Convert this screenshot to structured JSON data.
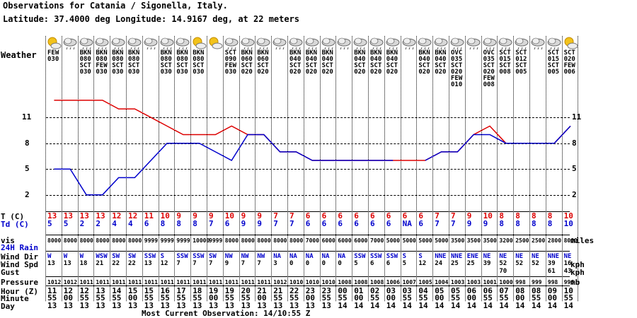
{
  "header": {
    "title": "Observations for Catania / Sigonella, Italy.",
    "location": "Latitude:  37.4000 deg Longitude:   14.9167 deg, at 22 meters"
  },
  "row_labels": {
    "weather": "Weather",
    "t": "T (C)",
    "td": "Td (C)",
    "vis": "vis",
    "rain": "24H Rain",
    "wind_dir": "Wind Dir",
    "wind_spd": "Wind Spd",
    "gust": "Gust",
    "pressure": "Pressure",
    "hour": "Hour (Z)",
    "minute": "Minute",
    "day": "Day"
  },
  "units": {
    "vis": "miles",
    "wind_spd": "kph",
    "gust": "kph",
    "pressure": "mb"
  },
  "footer": "Most Current Observation:  14/10:55 Z",
  "icons": [
    "sun-cloud",
    "cloud",
    "cloud",
    "cloud",
    "cloud",
    "cloud",
    "cloud",
    "cloud",
    "cloud",
    "sun-cloud",
    "sun-cloud",
    "cloud",
    "cloud",
    "cloud",
    "cloud",
    "cloud",
    "cloud",
    "cloud",
    "cloud",
    "cloud",
    "cloud",
    "cloud",
    "cloud",
    "cloud",
    "cloud",
    "cloud",
    "cloud",
    "cloud",
    "cloud",
    "cloud",
    "cloud",
    "cloud",
    "sun-cloud"
  ],
  "sky": [
    "FEW\n030",
    "",
    "BKN\n080\nSCT\n030",
    "BKN\n080\nFEW\n030",
    "BKN\n080\nSCT\n030",
    "BKN\n080\nSCT\n030",
    "",
    "BKN\n080\nSCT\n030",
    "BKN\n080\nSCT\n030",
    "BKN\n080\nSCT\n030",
    "",
    "SCT\n090\nFEW\n030",
    "BKN\n060\nSCT\n020",
    "BKN\n060\nSCT\n020",
    "",
    "BKN\n040\nSCT\n020",
    "BKN\n040\nSCT\n020",
    "BKN\n040\nSCT\n020",
    "",
    "BKN\n040\nSCT\n020",
    "BKN\n040\nSCT\n020",
    "BKN\n040\nSCT\n020",
    "",
    "BKN\n040\nSCT\n020",
    "BKN\n040\nSCT\n020",
    "OVC\n035\nSCT\n020\nFEW\n010",
    "",
    "OVC\n035\nSCT\n020\nFEW\n008",
    "SCT\n015\nSCT\n008",
    "SCT\n012\nSCT\n005",
    "",
    "SCT\n015\nSCT\n005",
    "SCT\n020\nFEW\n006"
  ],
  "chart_data": {
    "type": "line",
    "x": [
      "13 11:55",
      "13 12:00",
      "13 12:55",
      "13 13:55",
      "13 14:55",
      "13 15:00",
      "13 15:55",
      "13 16:55",
      "13 17:55",
      "13 18:55",
      "13 19:00",
      "13 19:55",
      "13 20:55",
      "13 21:00",
      "13 21:55",
      "13 22:55",
      "13 23:00",
      "13 23:55",
      "14 00:55",
      "14 01:00",
      "14 02:55",
      "14 03:00",
      "14 03:55",
      "14 04:55",
      "14 05:00",
      "14 05:55",
      "14 06:00",
      "14 06:55",
      "14 07:55",
      "14 08:00",
      "14 08:55",
      "14 09:00",
      "14 10:55"
    ],
    "series": [
      {
        "name": "T (C)",
        "color": "#dd0000",
        "values": [
          13,
          13,
          13,
          13,
          12,
          12,
          11,
          10,
          9,
          9,
          9,
          10,
          9,
          9,
          7,
          7,
          6,
          6,
          6,
          6,
          6,
          6,
          6,
          6,
          7,
          7,
          9,
          10,
          8,
          8,
          8,
          8,
          10
        ]
      },
      {
        "name": "Td (C)",
        "color": "#0000cc",
        "values": [
          5,
          5,
          2,
          2,
          4,
          4,
          6,
          8,
          8,
          8,
          7,
          6,
          9,
          9,
          7,
          7,
          6,
          6,
          6,
          6,
          6,
          6,
          null,
          6,
          7,
          7,
          9,
          9,
          8,
          8,
          8,
          8,
          10
        ]
      }
    ],
    "ylim": [
      0,
      14.8
    ],
    "yticks": [
      2,
      5,
      8,
      11
    ],
    "grid": "horizontal dashed at ticks, vertical dotted per observation"
  },
  "t_labels": [
    "13",
    "13",
    "13",
    "13",
    "12",
    "12",
    "11",
    "10",
    "9",
    "9",
    "9",
    "10",
    "9",
    "9",
    "7",
    "7",
    "6",
    "6",
    "6",
    "6",
    "6",
    "6",
    "6",
    "6",
    "7",
    "7",
    "9",
    "10",
    "8",
    "8",
    "8",
    "8",
    "10"
  ],
  "td_labels": [
    "5",
    "5",
    "2",
    "2",
    "4",
    "4",
    "6",
    "8",
    "8",
    "8",
    "7",
    "6",
    "9",
    "9",
    "7",
    "7",
    "6",
    "6",
    "6",
    "6",
    "6",
    "6",
    "NA",
    "6",
    "7",
    "7",
    "9",
    "9",
    "8",
    "8",
    "8",
    "8",
    "10"
  ],
  "vis": [
    "8000",
    "8000",
    "8000",
    "8000",
    "8000",
    "8000",
    "9999",
    "9999",
    "9999",
    "10000",
    "9999",
    "8000",
    "8000",
    "8000",
    "8000",
    "8000",
    "7000",
    "6000",
    "6000",
    "6000",
    "7000",
    "5000",
    "5000",
    "5000",
    "5000",
    "3500",
    "3500",
    "3500",
    "3200",
    "2500",
    "2500",
    "2800",
    "8000"
  ],
  "wind_dir": [
    "W",
    "W",
    "W",
    "WSW",
    "SW",
    "SW",
    "SSW",
    "S",
    "SSW",
    "SSW",
    "SW",
    "NW",
    "NW",
    "NW",
    "NA",
    "NA",
    "NA",
    "NA",
    "NA",
    "SSW",
    "SSW",
    "SSW",
    "S",
    "S",
    "NNE",
    "NNE",
    "ENE",
    "NE",
    "NE",
    "NE",
    "NE",
    "NNE",
    "NE"
  ],
  "wind_spd": [
    "13",
    "13",
    "18",
    "21",
    "22",
    "22",
    "13",
    "12",
    "7",
    "7",
    "7",
    "9",
    "7",
    "7",
    "3",
    "0",
    "0",
    "0",
    "0",
    "5",
    "6",
    "6",
    "5",
    "12",
    "24",
    "25",
    "25",
    "39",
    "52",
    "52",
    "52",
    "39",
    "16"
  ],
  "gust": [
    "",
    "",
    "",
    "",
    "",
    "",
    "",
    "",
    "",
    "",
    "",
    "",
    "",
    "",
    "",
    "",
    "",
    "",
    "",
    "",
    "",
    "",
    "",
    "",
    "",
    "",
    "",
    "",
    "70",
    "",
    "",
    "61",
    "43"
  ],
  "pressure": [
    "1012",
    "1012",
    "1011",
    "1011",
    "1011",
    "1011",
    "1011",
    "1011",
    "1011",
    "1011",
    "1011",
    "1011",
    "1011",
    "1011",
    "1012",
    "1010",
    "1010",
    "1010",
    "1008",
    "1008",
    "1008",
    "1006",
    "1007",
    "1005",
    "1004",
    "1003",
    "1003",
    "1001",
    "1000",
    "998",
    "999",
    "998",
    "996"
  ],
  "hour": [
    "11",
    "12",
    "12",
    "13",
    "14",
    "15",
    "15",
    "16",
    "17",
    "18",
    "19",
    "19",
    "20",
    "21",
    "21",
    "22",
    "23",
    "23",
    "00",
    "01",
    "02",
    "03",
    "03",
    "04",
    "05",
    "05",
    "06",
    "06",
    "07",
    "08",
    "08",
    "09",
    "10"
  ],
  "minute": [
    "55",
    "00",
    "55",
    "55",
    "55",
    "00",
    "55",
    "55",
    "55",
    "55",
    "00",
    "55",
    "55",
    "00",
    "55",
    "55",
    "00",
    "55",
    "55",
    "00",
    "55",
    "00",
    "55",
    "55",
    "00",
    "55",
    "00",
    "55",
    "55",
    "00",
    "55",
    "00",
    "55"
  ],
  "day": [
    "13",
    "13",
    "13",
    "13",
    "13",
    "13",
    "13",
    "13",
    "13",
    "13",
    "13",
    "13",
    "13",
    "13",
    "13",
    "13",
    "13",
    "13",
    "14",
    "14",
    "14",
    "14",
    "14",
    "14",
    "14",
    "14",
    "14",
    "14",
    "14",
    "14",
    "14",
    "14",
    "14"
  ]
}
